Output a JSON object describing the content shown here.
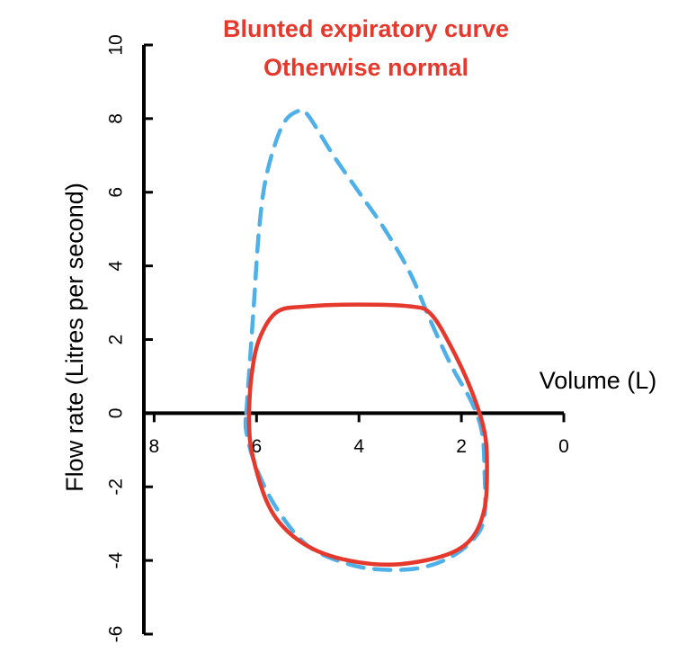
{
  "chart_data": {
    "type": "line",
    "title": [
      "Blunted expiratory curve",
      "Otherwise normal"
    ],
    "x_label": "Volume (L)",
    "y_label": "Flow rate (Litres per second)",
    "xlim": [
      8.2,
      0
    ],
    "xticks": [
      8,
      6,
      4,
      2,
      0
    ],
    "ylim": [
      -6,
      10
    ],
    "yticks": [
      -6,
      -4,
      -2,
      0,
      2,
      4,
      6,
      8,
      10
    ],
    "series": [
      {
        "color": "#4fb0e8",
        "dashed": true,
        "x": [
          6.2,
          6.15,
          6.05,
          5.95,
          5.8,
          5.5,
          5.2,
          5.0,
          4.5,
          4.0,
          3.5,
          3.0,
          2.6,
          2.2,
          1.8,
          1.6,
          1.55,
          1.55,
          1.75,
          2.2,
          2.8,
          3.5,
          4.2,
          5.0,
          5.6,
          6.0,
          6.2,
          6.2
        ],
        "values": [
          0,
          1,
          3,
          5,
          6.5,
          7.8,
          8.2,
          8.1,
          7.0,
          6.0,
          5.0,
          3.8,
          2.5,
          1.3,
          0.3,
          -0.5,
          -1.5,
          -2.8,
          -3.4,
          -3.9,
          -4.2,
          -4.25,
          -4.1,
          -3.6,
          -2.6,
          -1.5,
          -0.5,
          0
        ]
      },
      {
        "color": "#e5392e",
        "dashed": false,
        "x": [
          6.15,
          6.1,
          5.95,
          5.6,
          5.0,
          4.0,
          3.0,
          2.6,
          2.2,
          1.8,
          1.55,
          1.5,
          1.55,
          1.8,
          2.3,
          3.2,
          4.0,
          4.8,
          5.4,
          5.8,
          6.1,
          6.15
        ],
        "values": [
          0,
          1,
          2,
          2.75,
          2.9,
          2.95,
          2.9,
          2.7,
          1.8,
          0.6,
          -0.5,
          -1.5,
          -2.6,
          -3.4,
          -3.85,
          -4.1,
          -4.05,
          -3.75,
          -3.2,
          -2.4,
          -1,
          0
        ]
      }
    ]
  }
}
